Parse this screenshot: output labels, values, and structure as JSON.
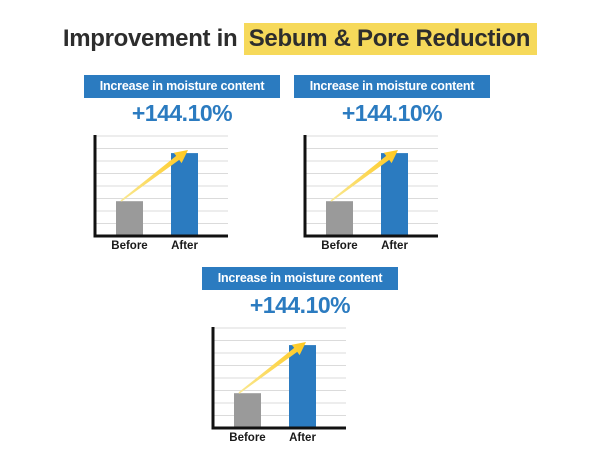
{
  "title": {
    "prefix": "Improvement in",
    "highlight": "Sebum & Pore Reduction"
  },
  "colors": {
    "accent_blue": "#2B7BC0",
    "highlight_yellow": "#F6D95A",
    "bar_gray": "#9A9A9A",
    "arrow_gold": "#FFC91F",
    "arrow_pale": "#F9E893",
    "title_ink": "#2D2D2D"
  },
  "panels": [
    {
      "banner": "Increase in moisture content",
      "percent": "+144.10%"
    },
    {
      "banner": "Increase in moisture content",
      "percent": "+144.10%"
    },
    {
      "banner": "Increase in moisture content",
      "percent": "+144.10%"
    }
  ],
  "chart_data": [
    {
      "type": "bar",
      "title": "Increase in moisture content",
      "annotation": "+144.10%",
      "categories": [
        "Before",
        "After"
      ],
      "values": [
        100,
        244.1
      ],
      "ylim": [
        0,
        300
      ],
      "grid": true,
      "gridlines": 8,
      "bar_colors": [
        "#9A9A9A",
        "#2B7BC0"
      ],
      "xlabel": "",
      "ylabel": ""
    },
    {
      "type": "bar",
      "title": "Increase in moisture content",
      "annotation": "+144.10%",
      "categories": [
        "Before",
        "After"
      ],
      "values": [
        100,
        244.1
      ],
      "ylim": [
        0,
        300
      ],
      "grid": true,
      "gridlines": 8,
      "bar_colors": [
        "#9A9A9A",
        "#2B7BC0"
      ],
      "xlabel": "",
      "ylabel": ""
    },
    {
      "type": "bar",
      "title": "Increase in moisture content",
      "annotation": "+144.10%",
      "categories": [
        "Before",
        "After"
      ],
      "values": [
        100,
        244.1
      ],
      "ylim": [
        0,
        300
      ],
      "grid": true,
      "gridlines": 8,
      "bar_colors": [
        "#9A9A9A",
        "#2B7BC0"
      ],
      "xlabel": "",
      "ylabel": ""
    }
  ]
}
